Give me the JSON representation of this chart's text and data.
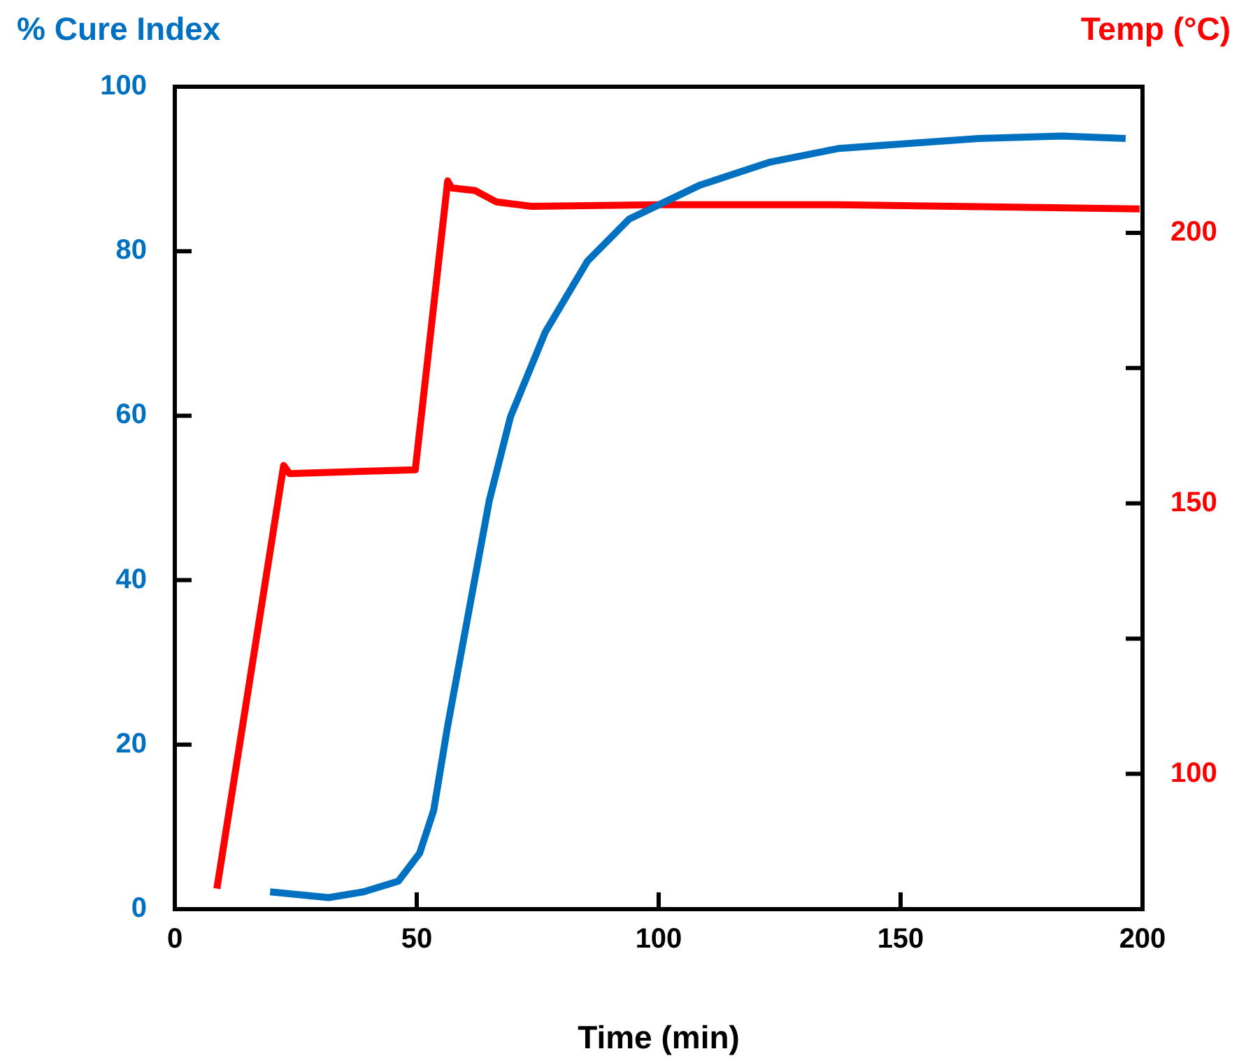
{
  "chart_data": {
    "type": "line",
    "xlabel": "Time (min)",
    "ylabel": "% Cure Index",
    "y2label": "Temp (°C)",
    "xlim": [
      0,
      200
    ],
    "xticks": [
      0,
      50,
      100,
      150,
      200
    ],
    "ylim": [
      0,
      100
    ],
    "yticks": [
      0,
      20,
      40,
      60,
      80,
      100
    ],
    "y2lim": [
      75,
      227
    ],
    "y2ticks": [
      100,
      {
        "value": 125,
        "label": null
      },
      150,
      {
        "value": 175,
        "label": null
      },
      200
    ],
    "grid": false,
    "legend": false,
    "marker": "none",
    "line_style": "solid",
    "series": [
      {
        "color": "#0070c0",
        "axis": "y",
        "x": [
          19.7,
          31.8,
          39,
          46.2,
          50.6,
          53.5,
          56.4,
          60.7,
          65,
          69.4,
          76.6,
          85.3,
          93.9,
          108.4,
          122.8,
          137.3,
          166.2,
          183.5,
          196.5
        ],
        "values": [
          2.1,
          1.4,
          2.1,
          3.4,
          6.8,
          12,
          22.3,
          36,
          49.7,
          59.9,
          70.2,
          78.8,
          83.9,
          88,
          90.8,
          92.5,
          93.7,
          94,
          93.7
        ]
      },
      {
        "color": "#ff0000",
        "axis": "y2",
        "x": [
          8.7,
          22.5,
          23.7,
          49.7,
          56.4,
          57.2,
          62.1,
          66.5,
          73.7,
          99.7,
          137,
          199.4
        ],
        "values": [
          78.8,
          157,
          155.5,
          156.2,
          209.6,
          208.3,
          207.8,
          205.7,
          204.9,
          205.2,
          205.2,
          204.4
        ]
      }
    ]
  }
}
